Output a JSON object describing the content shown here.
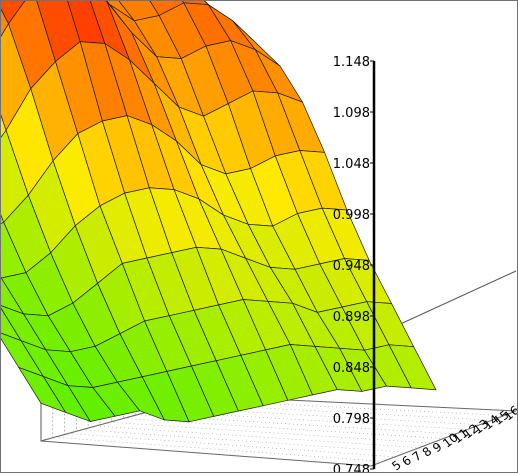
{
  "chart_data": {
    "type": "surface3d",
    "title": "",
    "xlabel": "",
    "ylabel": "",
    "zlabel": "",
    "z_ticks": [
      "0.748",
      "0.798",
      "0.848",
      "0.898",
      "0.948",
      "0.998",
      "1.048",
      "1.098",
      "1.148"
    ],
    "zlim": [
      0.748,
      1.148
    ],
    "x_ticks": [
      "5",
      "6",
      "7",
      "8",
      "9",
      "10",
      "11",
      "12",
      "13",
      "14",
      "15",
      "16"
    ],
    "grid": true,
    "colormap": [
      "#00ff00",
      "#ffff00",
      "#ff0000"
    ],
    "surface_z": [
      [
        0.8,
        0.79,
        0.78,
        0.79,
        0.8,
        0.79,
        0.79,
        0.8,
        0.81,
        0.82,
        0.83,
        0.84,
        0.85,
        0.85,
        0.86,
        0.86,
        0.86
      ],
      [
        0.81,
        0.8,
        0.79,
        0.79,
        0.8,
        0.81,
        0.82,
        0.83,
        0.84,
        0.85,
        0.86,
        0.87,
        0.87,
        0.87,
        0.87,
        0.88,
        0.88
      ],
      [
        0.82,
        0.81,
        0.8,
        0.8,
        0.81,
        0.83,
        0.85,
        0.86,
        0.87,
        0.88,
        0.89,
        0.89,
        0.89,
        0.88,
        0.89,
        0.9,
        0.9
      ],
      [
        0.83,
        0.82,
        0.81,
        0.81,
        0.83,
        0.86,
        0.89,
        0.9,
        0.91,
        0.92,
        0.92,
        0.91,
        0.9,
        0.9,
        0.91,
        0.92,
        0.92
      ],
      [
        0.83,
        0.83,
        0.82,
        0.83,
        0.86,
        0.9,
        0.93,
        0.95,
        0.96,
        0.96,
        0.95,
        0.93,
        0.92,
        0.92,
        0.94,
        0.95,
        0.95
      ],
      [
        0.84,
        0.84,
        0.84,
        0.86,
        0.9,
        0.95,
        0.99,
        1.01,
        1.02,
        1.01,
        0.99,
        0.96,
        0.95,
        0.96,
        0.98,
        0.99,
        0.99
      ],
      [
        0.84,
        0.85,
        0.86,
        0.9,
        0.95,
        1.01,
        1.05,
        1.08,
        1.08,
        1.06,
        1.03,
        1.0,
        0.99,
        1.01,
        1.03,
        1.03,
        1.02
      ],
      [
        0.85,
        0.86,
        0.88,
        0.93,
        1.0,
        1.06,
        1.11,
        1.14,
        1.13,
        1.1,
        1.06,
        1.03,
        1.03,
        1.05,
        1.06,
        1.05,
        1.03
      ],
      [
        0.85,
        0.86,
        0.89,
        0.95,
        1.02,
        1.08,
        1.13,
        1.15,
        1.14,
        1.1,
        1.06,
        1.04,
        1.05,
        1.07,
        1.07,
        1.05,
        1.02
      ],
      [
        0.84,
        0.86,
        0.89,
        0.94,
        1.0,
        1.06,
        1.1,
        1.11,
        1.09,
        1.05,
        1.03,
        1.04,
        1.06,
        1.07,
        1.06,
        1.03,
        1.0
      ],
      [
        0.83,
        0.85,
        0.88,
        0.92,
        0.97,
        1.01,
        1.04,
        1.04,
        1.02,
        1.0,
        1.01,
        1.03,
        1.05,
        1.05,
        1.03,
        1.0,
        0.97
      ],
      [
        0.82,
        0.84,
        0.86,
        0.89,
        0.93,
        0.96,
        0.98,
        0.98,
        0.97,
        0.97,
        0.99,
        1.01,
        1.02,
        1.02,
        1.0,
        0.97,
        0.95
      ]
    ]
  }
}
